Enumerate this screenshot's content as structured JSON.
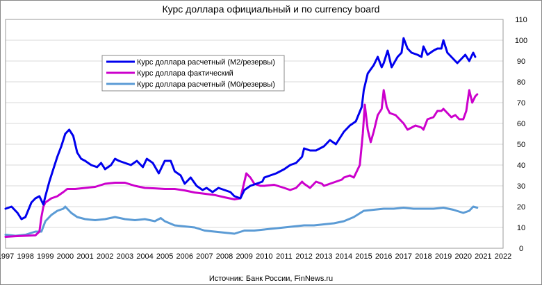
{
  "chart_data": {
    "type": "line",
    "title": "Курс доллара официальный и по currency board",
    "source": "Источник: Банк России, FinNews.ru",
    "x_ticks": [
      "1997",
      "1998",
      "1999",
      "2000",
      "2001",
      "2002",
      "2003",
      "2004",
      "2005",
      "2006",
      "2007",
      "2008",
      "2009",
      "2010",
      "2011",
      "2012",
      "2013",
      "2014",
      "2015",
      "2016",
      "2017",
      "2018",
      "2019",
      "2020",
      "2021",
      "2022"
    ],
    "xlim": [
      1997,
      2022
    ],
    "ylim": [
      0,
      110
    ],
    "y_ticks": [
      "0",
      "10",
      "20",
      "30",
      "40",
      "50",
      "60",
      "70",
      "80",
      "90",
      "100",
      "110"
    ],
    "grid": "horizontal",
    "legend_position": "upper-left",
    "series": [
      {
        "name": "Курс доллара расчетный (М2/резервы)",
        "color": "#0000ee",
        "points": [
          [
            1997.0,
            19
          ],
          [
            1997.3,
            20
          ],
          [
            1997.6,
            17
          ],
          [
            1997.8,
            14
          ],
          [
            1998.0,
            15
          ],
          [
            1998.3,
            22
          ],
          [
            1998.5,
            24
          ],
          [
            1998.7,
            25
          ],
          [
            1998.9,
            21
          ],
          [
            1999.0,
            25
          ],
          [
            1999.2,
            32
          ],
          [
            1999.4,
            38
          ],
          [
            1999.6,
            44
          ],
          [
            1999.8,
            49
          ],
          [
            2000.0,
            55
          ],
          [
            2000.2,
            57
          ],
          [
            2000.4,
            54
          ],
          [
            2000.6,
            46
          ],
          [
            2000.8,
            43
          ],
          [
            2001.0,
            42
          ],
          [
            2001.3,
            40
          ],
          [
            2001.6,
            39
          ],
          [
            2001.8,
            41
          ],
          [
            2002.0,
            38
          ],
          [
            2002.3,
            40
          ],
          [
            2002.5,
            43
          ],
          [
            2002.7,
            42
          ],
          [
            2003.0,
            41
          ],
          [
            2003.3,
            40
          ],
          [
            2003.6,
            42
          ],
          [
            2003.9,
            39
          ],
          [
            2004.1,
            43
          ],
          [
            2004.4,
            41
          ],
          [
            2004.7,
            36
          ],
          [
            2005.0,
            42
          ],
          [
            2005.3,
            42
          ],
          [
            2005.5,
            37
          ],
          [
            2005.8,
            35
          ],
          [
            2006.0,
            31
          ],
          [
            2006.3,
            34
          ],
          [
            2006.6,
            30
          ],
          [
            2006.9,
            28
          ],
          [
            2007.1,
            29
          ],
          [
            2007.4,
            27
          ],
          [
            2007.7,
            29
          ],
          [
            2008.0,
            28
          ],
          [
            2008.3,
            27
          ],
          [
            2008.5,
            25
          ],
          [
            2008.8,
            24
          ],
          [
            2009.0,
            28
          ],
          [
            2009.3,
            30
          ],
          [
            2009.6,
            31
          ],
          [
            2009.9,
            32
          ],
          [
            2010.0,
            34
          ],
          [
            2010.3,
            35
          ],
          [
            2010.6,
            36
          ],
          [
            2011.0,
            38
          ],
          [
            2011.3,
            40
          ],
          [
            2011.6,
            41
          ],
          [
            2011.9,
            44
          ],
          [
            2012.0,
            48
          ],
          [
            2012.3,
            47
          ],
          [
            2012.6,
            47
          ],
          [
            2013.0,
            49
          ],
          [
            2013.3,
            52
          ],
          [
            2013.6,
            50
          ],
          [
            2014.0,
            56
          ],
          [
            2014.3,
            59
          ],
          [
            2014.6,
            61
          ],
          [
            2014.9,
            68
          ],
          [
            2015.0,
            76
          ],
          [
            2015.2,
            84
          ],
          [
            2015.5,
            88
          ],
          [
            2015.7,
            92
          ],
          [
            2015.9,
            87
          ],
          [
            2016.0,
            89
          ],
          [
            2016.2,
            95
          ],
          [
            2016.4,
            87
          ],
          [
            2016.7,
            92
          ],
          [
            2016.9,
            94
          ],
          [
            2017.0,
            101
          ],
          [
            2017.2,
            96
          ],
          [
            2017.4,
            94
          ],
          [
            2017.7,
            93
          ],
          [
            2017.9,
            92
          ],
          [
            2018.0,
            97
          ],
          [
            2018.2,
            93
          ],
          [
            2018.5,
            95
          ],
          [
            2018.7,
            96
          ],
          [
            2018.9,
            96
          ],
          [
            2019.0,
            100
          ],
          [
            2019.2,
            94
          ],
          [
            2019.5,
            91
          ],
          [
            2019.7,
            89
          ],
          [
            2019.9,
            91
          ],
          [
            2020.1,
            93
          ],
          [
            2020.3,
            90
          ],
          [
            2020.5,
            94
          ],
          [
            2020.6,
            92
          ]
        ]
      },
      {
        "name": "Курс доллара фактический",
        "color": "#cc00cc",
        "points": [
          [
            1997.0,
            5.5
          ],
          [
            1997.5,
            5.8
          ],
          [
            1998.0,
            6
          ],
          [
            1998.5,
            6.2
          ],
          [
            1998.7,
            8
          ],
          [
            1998.8,
            15
          ],
          [
            1998.9,
            20
          ],
          [
            1999.0,
            22
          ],
          [
            1999.3,
            24
          ],
          [
            1999.6,
            25
          ],
          [
            1999.9,
            27
          ],
          [
            2000.1,
            28.5
          ],
          [
            2000.5,
            28.5
          ],
          [
            2001.0,
            29
          ],
          [
            2001.5,
            29.5
          ],
          [
            2002.0,
            31
          ],
          [
            2002.5,
            31.5
          ],
          [
            2003.0,
            31.5
          ],
          [
            2003.5,
            30
          ],
          [
            2004.0,
            29
          ],
          [
            2004.5,
            28.8
          ],
          [
            2005.0,
            28.5
          ],
          [
            2005.5,
            28.5
          ],
          [
            2006.0,
            27.8
          ],
          [
            2006.5,
            26.8
          ],
          [
            2007.0,
            26.2
          ],
          [
            2007.5,
            25.6
          ],
          [
            2008.0,
            24.5
          ],
          [
            2008.5,
            23.5
          ],
          [
            2008.8,
            24
          ],
          [
            2009.0,
            32
          ],
          [
            2009.1,
            36
          ],
          [
            2009.3,
            34
          ],
          [
            2009.5,
            31
          ],
          [
            2009.8,
            30
          ],
          [
            2010.0,
            30
          ],
          [
            2010.5,
            30.5
          ],
          [
            2011.0,
            29
          ],
          [
            2011.3,
            28
          ],
          [
            2011.6,
            29
          ],
          [
            2011.9,
            32
          ],
          [
            2012.0,
            31
          ],
          [
            2012.3,
            29
          ],
          [
            2012.6,
            32
          ],
          [
            2012.9,
            31
          ],
          [
            2013.0,
            30
          ],
          [
            2013.3,
            31
          ],
          [
            2013.6,
            32
          ],
          [
            2013.9,
            33
          ],
          [
            2014.0,
            34
          ],
          [
            2014.3,
            35
          ],
          [
            2014.5,
            34
          ],
          [
            2014.8,
            40
          ],
          [
            2014.95,
            55
          ],
          [
            2015.05,
            69
          ],
          [
            2015.2,
            57
          ],
          [
            2015.35,
            51
          ],
          [
            2015.5,
            56
          ],
          [
            2015.7,
            64
          ],
          [
            2015.9,
            67
          ],
          [
            2016.0,
            76
          ],
          [
            2016.15,
            68
          ],
          [
            2016.3,
            65
          ],
          [
            2016.6,
            64
          ],
          [
            2016.9,
            61
          ],
          [
            2017.0,
            60
          ],
          [
            2017.2,
            57
          ],
          [
            2017.4,
            58
          ],
          [
            2017.6,
            59
          ],
          [
            2017.9,
            58
          ],
          [
            2018.0,
            57
          ],
          [
            2018.2,
            62
          ],
          [
            2018.5,
            63
          ],
          [
            2018.7,
            66
          ],
          [
            2018.9,
            66
          ],
          [
            2019.0,
            67
          ],
          [
            2019.2,
            65
          ],
          [
            2019.4,
            63
          ],
          [
            2019.6,
            64
          ],
          [
            2019.8,
            62
          ],
          [
            2020.0,
            62
          ],
          [
            2020.15,
            66
          ],
          [
            2020.3,
            76
          ],
          [
            2020.45,
            70
          ],
          [
            2020.6,
            73
          ],
          [
            2020.7,
            74
          ]
        ]
      },
      {
        "name": "Курс доллара расчетный (М0/резервы)",
        "color": "#5b9bd5",
        "points": [
          [
            1997.0,
            6.5
          ],
          [
            1997.5,
            6
          ],
          [
            1998.0,
            6.5
          ],
          [
            1998.5,
            8
          ],
          [
            1998.8,
            8
          ],
          [
            1999.0,
            13
          ],
          [
            1999.3,
            16
          ],
          [
            1999.6,
            18
          ],
          [
            1999.9,
            19
          ],
          [
            2000.0,
            20
          ],
          [
            2000.3,
            17
          ],
          [
            2000.6,
            15
          ],
          [
            2001.0,
            14
          ],
          [
            2001.5,
            13.5
          ],
          [
            2002.0,
            14
          ],
          [
            2002.5,
            15
          ],
          [
            2003.0,
            14
          ],
          [
            2003.5,
            13.5
          ],
          [
            2004.0,
            14
          ],
          [
            2004.5,
            13
          ],
          [
            2004.8,
            14.5
          ],
          [
            2005.0,
            13
          ],
          [
            2005.5,
            11
          ],
          [
            2006.0,
            10.5
          ],
          [
            2006.5,
            10
          ],
          [
            2007.0,
            8.5
          ],
          [
            2007.5,
            8
          ],
          [
            2008.0,
            7.5
          ],
          [
            2008.5,
            7
          ],
          [
            2009.0,
            8.5
          ],
          [
            2009.5,
            8.5
          ],
          [
            2010.0,
            9
          ],
          [
            2010.5,
            9.5
          ],
          [
            2011.0,
            10
          ],
          [
            2011.5,
            10.5
          ],
          [
            2012.0,
            11
          ],
          [
            2012.5,
            11
          ],
          [
            2013.0,
            11.5
          ],
          [
            2013.5,
            12
          ],
          [
            2014.0,
            13
          ],
          [
            2014.5,
            15
          ],
          [
            2015.0,
            18
          ],
          [
            2015.5,
            18.5
          ],
          [
            2016.0,
            19
          ],
          [
            2016.5,
            19
          ],
          [
            2017.0,
            19.5
          ],
          [
            2017.5,
            19
          ],
          [
            2018.0,
            19
          ],
          [
            2018.5,
            19
          ],
          [
            2019.0,
            19.5
          ],
          [
            2019.5,
            18.5
          ],
          [
            2020.0,
            17
          ],
          [
            2020.3,
            18
          ],
          [
            2020.5,
            20
          ],
          [
            2020.7,
            19.5
          ]
        ]
      }
    ]
  }
}
